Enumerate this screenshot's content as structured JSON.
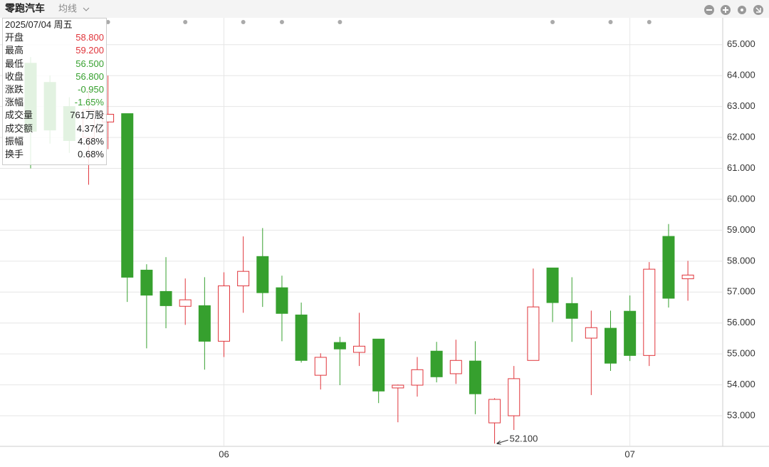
{
  "chart_data": {
    "type": "candlestick",
    "title": "零跑汽车",
    "indicator": "均线",
    "categories": [
      null,
      null,
      null,
      null,
      null,
      null,
      null,
      null,
      null,
      null,
      "06",
      null,
      null,
      null,
      null,
      null,
      null,
      null,
      null,
      null,
      null,
      null,
      null,
      null,
      null,
      null,
      null,
      null,
      null,
      null,
      null,
      "07",
      null,
      null,
      null
    ],
    "open": [
      64.4,
      63.78,
      63.0,
      62.0,
      62.5,
      62.77,
      57.71,
      57.02,
      56.54,
      56.56,
      55.41,
      57.2,
      58.15,
      57.14,
      56.26,
      54.31,
      55.37,
      55.05,
      55.48,
      53.9,
      53.99,
      55.09,
      54.36,
      54.77,
      52.77,
      53.0,
      54.79,
      57.78,
      56.63,
      55.51,
      55.83,
      56.38,
      54.95,
      58.8,
      57.43
    ],
    "high": [
      64.6,
      64.0,
      63.3,
      63.6,
      64.0,
      62.77,
      57.9,
      58.13,
      57.44,
      57.48,
      57.64,
      58.8,
      59.07,
      57.53,
      56.66,
      55.02,
      55.55,
      56.33,
      55.48,
      54.01,
      54.9,
      55.39,
      55.46,
      55.41,
      53.57,
      54.61,
      57.76,
      57.78,
      57.48,
      56.4,
      56.4,
      56.89,
      57.97,
      59.2,
      58.01
    ],
    "low": [
      61.0,
      61.8,
      61.5,
      60.47,
      61.62,
      56.68,
      55.18,
      55.83,
      55.94,
      54.49,
      54.9,
      56.33,
      56.52,
      55.41,
      54.72,
      53.85,
      53.99,
      54.61,
      53.41,
      52.79,
      53.62,
      54.08,
      54.03,
      53.05,
      52.1,
      52.54,
      54.79,
      56.03,
      55.39,
      53.67,
      54.45,
      54.77,
      54.61,
      56.5,
      56.72
    ],
    "close": [
      62.2,
      62.24,
      61.9,
      62.9,
      62.75,
      57.48,
      56.9,
      56.56,
      56.75,
      55.41,
      57.2,
      57.67,
      56.98,
      56.31,
      54.79,
      54.89,
      55.16,
      55.25,
      53.8,
      53.99,
      54.49,
      54.26,
      54.79,
      53.71,
      53.53,
      54.2,
      56.52,
      56.66,
      56.15,
      55.85,
      54.7,
      54.95,
      57.74,
      56.8,
      57.55
    ],
    "up_color": "#e0353b",
    "down_color": "#36a02e",
    "ylim": [
      52.08,
      65.8
    ],
    "yticks": [
      {
        "value": 53,
        "label": "53.000"
      },
      {
        "value": 54,
        "label": "54.000"
      },
      {
        "value": 55,
        "label": "55.000"
      },
      {
        "value": 56,
        "label": "56.000"
      },
      {
        "value": 57,
        "label": "57.000"
      },
      {
        "value": 58,
        "label": "58.000"
      },
      {
        "value": 59,
        "label": "59.000"
      },
      {
        "value": 60,
        "label": "60.000"
      },
      {
        "value": 61,
        "label": "61.000"
      },
      {
        "value": 62,
        "label": "62.000"
      },
      {
        "value": 63,
        "label": "63.000"
      },
      {
        "value": 64,
        "label": "64.000"
      },
      {
        "value": 65,
        "label": "65.000"
      }
    ],
    "grid": true,
    "annotation": {
      "index": 24,
      "text": "52.100"
    }
  },
  "tooltip": {
    "date": "2025/07/04 周五",
    "rows": [
      {
        "label": "开盘",
        "value": "58.800",
        "color": "#e0353b"
      },
      {
        "label": "最高",
        "value": "59.200",
        "color": "#e0353b"
      },
      {
        "label": "最低",
        "value": "56.500",
        "color": "#36a02e"
      },
      {
        "label": "收盘",
        "value": "56.800",
        "color": "#36a02e"
      },
      {
        "label": "涨跌",
        "value": "-0.950",
        "color": "#36a02e"
      },
      {
        "label": "涨幅",
        "value": "-1.65%",
        "color": "#36a02e"
      },
      {
        "label": "成交量",
        "value": "761万股",
        "color": "#222"
      },
      {
        "label": "成交额",
        "value": "4.37亿",
        "color": "#222"
      },
      {
        "label": "振幅",
        "value": "4.68%",
        "color": "#222"
      },
      {
        "label": "换手",
        "value": "0.68%",
        "color": "#222"
      }
    ]
  }
}
